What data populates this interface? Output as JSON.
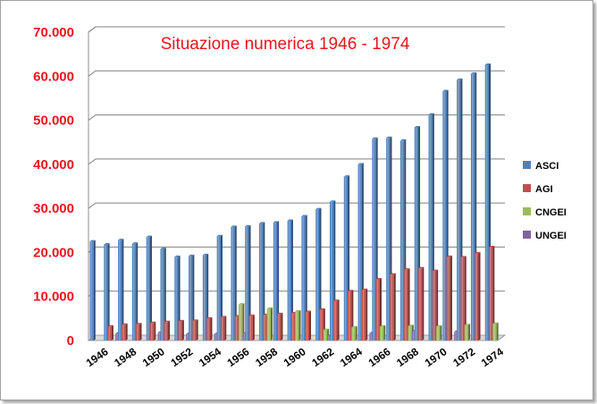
{
  "colors": {
    "ASCI": "#4f81bd",
    "AGI": "#c0504d",
    "CNGEI": "#9bbb59",
    "UNGEI": "#8064a2",
    "title": "#e8141e",
    "ytick": "#e8141e"
  },
  "chart_data": {
    "type": "bar",
    "title": "Situazione numerica 1946 - 1974",
    "xlabel": "",
    "ylabel": "",
    "ylim": [
      0,
      70000
    ],
    "yticks": [
      0,
      10000,
      20000,
      30000,
      40000,
      50000,
      60000,
      70000
    ],
    "ytick_labels": [
      "0",
      "10.000",
      "20.000",
      "30.000",
      "40.000",
      "50.000",
      "60.000",
      "70.000"
    ],
    "grid": true,
    "legend_position": "right",
    "categories": [
      "1946",
      "1947",
      "1948",
      "1949",
      "1950",
      "1951",
      "1952",
      "1953",
      "1954",
      "1955",
      "1956",
      "1957",
      "1958",
      "1959",
      "1960",
      "1961",
      "1962",
      "1963",
      "1964",
      "1965",
      "1966",
      "1967",
      "1968",
      "1969",
      "1970",
      "1971",
      "1972",
      "1973",
      "1974"
    ],
    "xtick_labels": [
      "1946",
      "",
      "1948",
      "",
      "1950",
      "",
      "1952",
      "",
      "1954",
      "",
      "1956",
      "",
      "1958",
      "",
      "1960",
      "",
      "1962",
      "",
      "1964",
      "",
      "1966",
      "",
      "1968",
      "",
      "1970",
      "",
      "1972",
      "",
      "1974"
    ],
    "series": [
      {
        "name": "ASCI",
        "values": [
          22500,
          21800,
          22800,
          22000,
          23500,
          20800,
          19000,
          19200,
          19400,
          23700,
          25800,
          25900,
          26600,
          26800,
          27200,
          28200,
          29800,
          31500,
          37200,
          40000,
          45800,
          46000,
          45400,
          48400,
          51300,
          56600,
          59200,
          60600,
          62600
        ]
      },
      {
        "name": "AGI",
        "values": [
          0,
          3200,
          3600,
          3700,
          4000,
          4200,
          4400,
          4500,
          5000,
          5300,
          5500,
          5600,
          5800,
          6000,
          6200,
          6500,
          7000,
          9000,
          11200,
          11500,
          13900,
          15000,
          16100,
          16400,
          15800,
          19000,
          18900,
          19800,
          21200
        ]
      },
      {
        "name": "CNGEI",
        "values": [
          0,
          0,
          0,
          0,
          0,
          0,
          0,
          0,
          0,
          0,
          8200,
          0,
          7200,
          0,
          6600,
          0,
          2400,
          0,
          3000,
          0,
          3200,
          0,
          3300,
          0,
          3200,
          0,
          3500,
          0,
          3800
        ]
      },
      {
        "name": "UNGEI",
        "values": [
          0,
          1600,
          0,
          0,
          1800,
          0,
          1500,
          0,
          1500,
          0,
          1600,
          0,
          0,
          0,
          0,
          0,
          1100,
          0,
          0,
          1700,
          0,
          0,
          2100,
          0,
          0,
          2000,
          0,
          0,
          0
        ]
      }
    ]
  }
}
